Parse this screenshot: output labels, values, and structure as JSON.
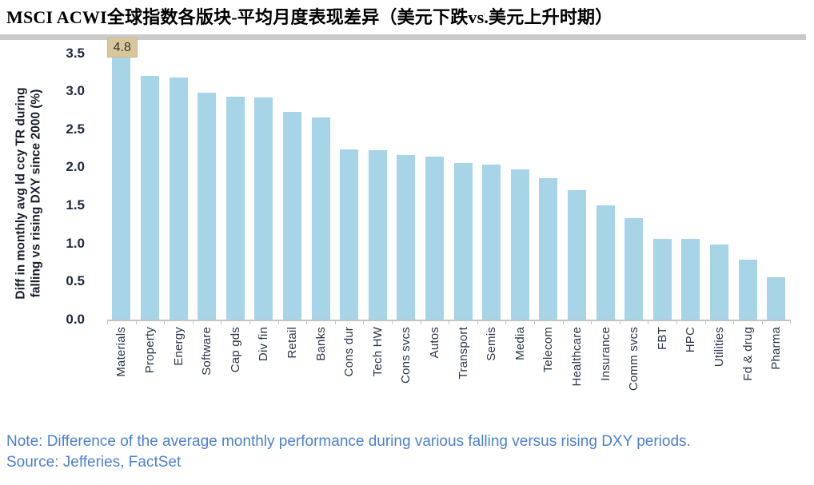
{
  "page": {
    "title": "MSCI ACWI全球指数各版块-平均月度表现差异（美元下跌vs.美元上升时期）"
  },
  "footer": {
    "note": "Note: Difference of the average monthly performance during various falling versus rising DXY periods.",
    "source": "Source: Jefferies, FactSet"
  },
  "colors": {
    "bar": "#a8d4e8",
    "bar_label_bg": "#d9c79c",
    "axis": "#c4c4c4",
    "tick_text": "#1f2a40",
    "category_text": "#2b3548",
    "footer_text": "#4d80d1",
    "band": "#cacaca"
  },
  "chart_data": {
    "type": "bar",
    "categories": [
      "Materials",
      "Property",
      "Energy",
      "Software",
      "Cap gds",
      "Div fin",
      "Retail",
      "Banks",
      "Cons dur",
      "Tech HW",
      "Cons svcs",
      "Autos",
      "Transport",
      "Semis",
      "Media",
      "Telecom",
      "Healthcare",
      "Insurance",
      "Comm svcs",
      "FBT",
      "HPC",
      "Utilities",
      "Fd & drug",
      "Pharma"
    ],
    "values": [
      4.8,
      3.2,
      3.18,
      2.98,
      2.93,
      2.92,
      2.73,
      2.65,
      2.24,
      2.22,
      2.16,
      2.14,
      2.06,
      2.04,
      1.97,
      1.86,
      1.7,
      1.5,
      1.33,
      1.06,
      1.06,
      0.99,
      0.79,
      0.56
    ],
    "data_labels": [
      {
        "category_index": 0,
        "text": "4.8"
      }
    ],
    "ylabel_lines": [
      "Diff in monthly avg ld ccy TR during",
      "falling vs rising DXY since 2000 (%)"
    ],
    "ytick_labels": [
      "3.5",
      "3.0",
      "2.5",
      "2.0",
      "1.5",
      "1.0",
      "0.5",
      "0.0"
    ],
    "ylim": [
      0,
      3.5
    ],
    "bars_clipped_at_ymax": [
      "Materials"
    ],
    "grid": false,
    "legend": null
  }
}
